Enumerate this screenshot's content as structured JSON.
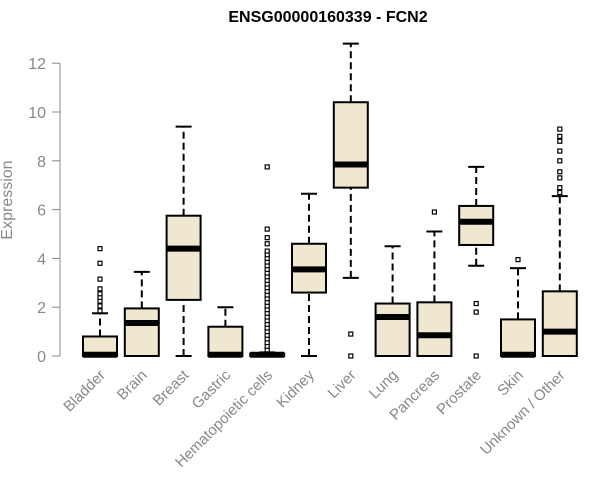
{
  "chart_data": {
    "type": "box",
    "title": "ENSG00000160339 - FCN2",
    "xlabel": "",
    "ylabel": "Expression",
    "ylim": [
      0,
      12.5
    ],
    "yticks": [
      0,
      2,
      4,
      6,
      8,
      10,
      12
    ],
    "grid": false,
    "colors": {
      "box_fill": "#efe7d0",
      "stroke": "#000000",
      "axis": "#888888"
    },
    "series": [
      {
        "name": "Bladder",
        "whisker_low": 0,
        "q1": 0,
        "median": 0.05,
        "q3": 0.8,
        "whisker_high": 1.75,
        "outliers": [
          1.85,
          2.05,
          2.25,
          2.4,
          2.55,
          2.75,
          3.15,
          3.8,
          4.4
        ]
      },
      {
        "name": "Brain",
        "whisker_low": 0,
        "q1": 0,
        "median": 1.35,
        "q3": 1.95,
        "whisker_high": 3.45,
        "outliers": []
      },
      {
        "name": "Breast",
        "whisker_low": 0,
        "q1": 2.3,
        "median": 4.4,
        "q3": 5.75,
        "whisker_high": 9.4,
        "outliers": []
      },
      {
        "name": "Gastric",
        "whisker_low": 0,
        "q1": 0,
        "median": 0.05,
        "q3": 1.2,
        "whisker_high": 2.0,
        "outliers": []
      },
      {
        "name": "Hematopoietic cells",
        "whisker_low": 0,
        "q1": 0,
        "median": 0.05,
        "q3": 0.1,
        "whisker_high": 0.15,
        "outliers": [
          0.25,
          0.4,
          0.55,
          0.7,
          0.85,
          1.0,
          1.15,
          1.3,
          1.45,
          1.6,
          1.75,
          1.9,
          2.05,
          2.2,
          2.35,
          2.5,
          2.65,
          2.8,
          2.95,
          3.1,
          3.25,
          3.4,
          3.55,
          3.7,
          3.85,
          4.0,
          4.15,
          4.3,
          4.6,
          4.85,
          5.2,
          7.75
        ]
      },
      {
        "name": "Kidney",
        "whisker_low": 0,
        "q1": 2.6,
        "median": 3.55,
        "q3": 4.6,
        "whisker_high": 6.65,
        "outliers": []
      },
      {
        "name": "Liver",
        "whisker_low": 3.2,
        "q1": 6.9,
        "median": 7.85,
        "q3": 10.4,
        "whisker_high": 12.8,
        "outliers": [
          0,
          0.9
        ]
      },
      {
        "name": "Lung",
        "whisker_low": 0,
        "q1": 0,
        "median": 1.6,
        "q3": 2.15,
        "whisker_high": 4.5,
        "outliers": []
      },
      {
        "name": "Pancreas",
        "whisker_low": 0,
        "q1": 0,
        "median": 0.85,
        "q3": 2.2,
        "whisker_high": 5.1,
        "outliers": [
          5.9
        ]
      },
      {
        "name": "Prostate",
        "whisker_low": 3.7,
        "q1": 4.55,
        "median": 5.5,
        "q3": 6.15,
        "whisker_high": 7.75,
        "outliers": [
          0,
          1.8,
          2.15
        ]
      },
      {
        "name": "Skin",
        "whisker_low": 0,
        "q1": 0,
        "median": 0.05,
        "q3": 1.5,
        "whisker_high": 3.6,
        "outliers": [
          3.95
        ]
      },
      {
        "name": "Unknown / Other",
        "whisker_low": 0,
        "q1": 0,
        "median": 1.0,
        "q3": 2.65,
        "whisker_high": 6.55,
        "outliers": [
          6.7,
          6.9,
          7.3,
          7.55,
          8.0,
          8.4,
          8.8,
          9.0,
          9.3
        ]
      }
    ]
  }
}
